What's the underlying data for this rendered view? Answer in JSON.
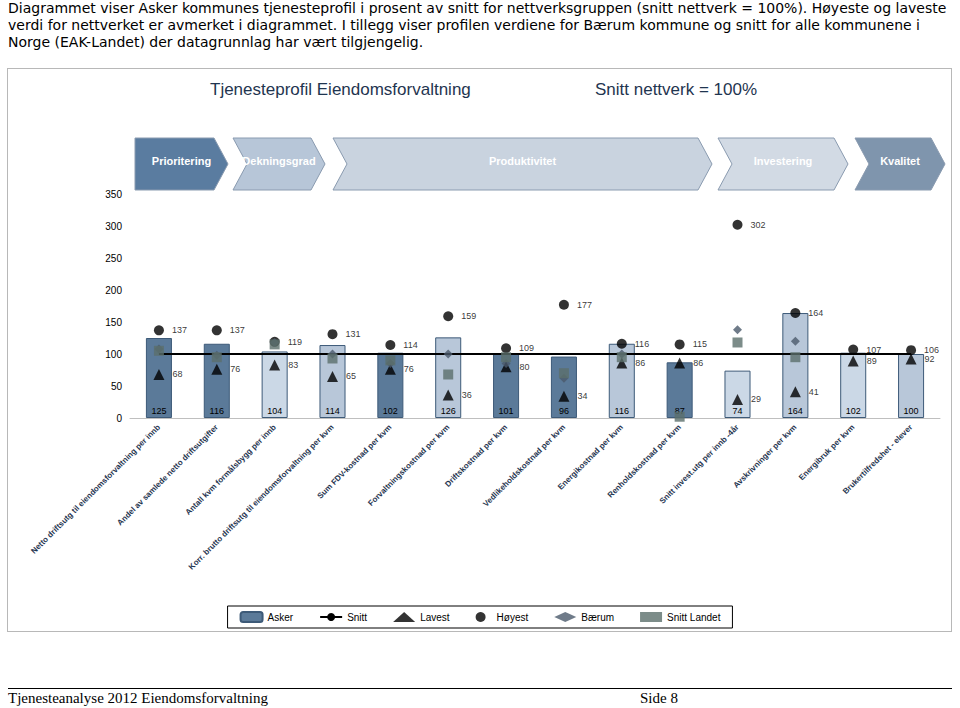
{
  "header": {
    "text": "Diagrammet viser Asker kommunes tjenesteprofil i prosent av snitt for nettverksgruppen (snitt nettverk = 100%). Høyeste og laveste verdi for nettverket er avmerket i diagrammet. I tillegg viser profilen verdiene for Bærum kommune og snitt for alle kommunene i Norge (EAK-Landet) der datagrunnlag har vært tilgjengelig."
  },
  "banner": [
    "Prioritering",
    "Dekningsgrad",
    "Produktivitet",
    "Investering",
    "Kvalitet"
  ],
  "chart_data": {
    "type": "bar",
    "title": "Tjenesteprofil Eiendomsforvaltning",
    "subtitle": "Snitt nettverk = 100%",
    "categories": [
      "Netto driftsutg til eiendomsforvaltning per innb",
      "Andel av samlede netto driftsutgifter",
      "Antall kvm formålsbygg per innb",
      "Korr. brutto driftsutg til eiendomsforvaltning per kvm",
      "Sum FDV-kostnad per kvm",
      "Forvaltningskostnad per kvm",
      "Driftskostnad per kvm",
      "Vedlikeholdskostnad per kvm",
      "Energikostnad per kvm",
      "Renholdskostnad per kvm",
      "Snitt invest.utg per innb -4år",
      "Avskrivninger per kvm",
      "Energibruk per kvm",
      "Brukertilfredshet - elever"
    ],
    "series": [
      {
        "name": "Asker",
        "type": "bar",
        "data_labels": true,
        "colors": [
          "#5b7a99",
          "#5b7a99",
          "#cbd8e6",
          "#b8c7d9",
          "#5b7a99",
          "#b8c7d9",
          "#5b7a99",
          "#5b7a99",
          "#b8c7d9",
          "#5b7a99",
          "#cbd8e6",
          "#b8c7d9",
          "#cbd8e6",
          "#b8c7d9"
        ],
        "values": [
          125,
          116,
          104,
          114,
          102,
          126,
          101,
          96,
          116,
          87,
          74,
          164,
          102,
          100
        ]
      },
      {
        "name": "Snitt",
        "type": "line",
        "color": "#000000",
        "line_style": "solid",
        "values": [
          100,
          100,
          100,
          100,
          100,
          100,
          100,
          100,
          100,
          100,
          100,
          100,
          100,
          100
        ]
      },
      {
        "name": "Lavest",
        "type": "scatter",
        "marker": "triangle",
        "color": "#000000",
        "data_labels": true,
        "values": [
          68,
          76,
          83,
          65,
          76,
          36,
          80,
          34,
          86,
          86,
          29,
          41,
          89,
          92
        ]
      },
      {
        "name": "Høyest",
        "type": "scatter",
        "marker": "circle",
        "color": "#000000",
        "data_labels": true,
        "values": [
          137,
          137,
          119,
          131,
          114,
          159,
          109,
          177,
          116,
          115,
          302,
          164,
          107,
          106
        ]
      },
      {
        "name": "Bærum",
        "type": "scatter",
        "marker": "diamond",
        "color": "#4b5a6b",
        "values": [
          108,
          98,
          118,
          100,
          85,
          100,
          85,
          62,
          100,
          null,
          138,
          120,
          null,
          null
        ]
      },
      {
        "name": "Snitt Landet",
        "type": "scatter",
        "marker": "square",
        "color": "#5b6f6b",
        "values": [
          105,
          95,
          115,
          93,
          90,
          68,
          95,
          70,
          95,
          2,
          118,
          95,
          null,
          null
        ]
      }
    ],
    "ylim": [
      0,
      350
    ],
    "yticks": [
      0,
      50,
      100,
      150,
      200,
      250,
      300,
      350
    ],
    "grid": false,
    "legend": "bottom"
  },
  "footer": {
    "left": "Tjenesteanalyse 2012 Eiendomsforvaltning",
    "right": "Side 8"
  }
}
